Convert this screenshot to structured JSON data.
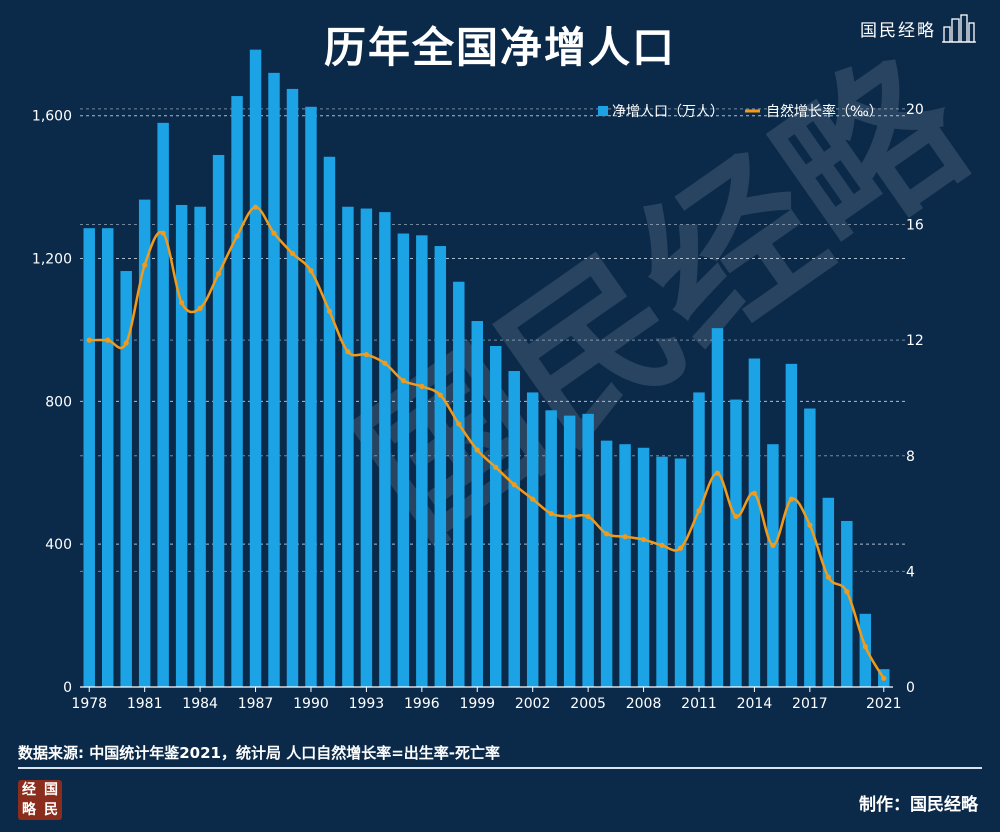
{
  "page": {
    "title": "历年全国净增人口",
    "brand": "国民经略",
    "source": "数据来源: 中国统计年鉴2021，统计局 人口自然增长率=出生率-死亡率",
    "credit": "制作：国民经略",
    "logo_chars": [
      "经",
      "国",
      "略",
      "民"
    ]
  },
  "colors": {
    "background": "#0b2a4a",
    "bar": "#1ba3e6",
    "line": "#f29a1a",
    "grid": "#c8d6e5"
  },
  "chart_data": {
    "type": "bar",
    "title": "历年全国净增人口",
    "categories": [
      "1978",
      "1979",
      "1980",
      "1981",
      "1982",
      "1983",
      "1984",
      "1985",
      "1986",
      "1987",
      "1988",
      "1989",
      "1990",
      "1991",
      "1992",
      "1993",
      "1994",
      "1995",
      "1996",
      "1997",
      "1998",
      "1999",
      "2000",
      "2001",
      "2002",
      "2003",
      "2004",
      "2005",
      "2006",
      "2007",
      "2008",
      "2009",
      "2010",
      "2011",
      "2012",
      "2013",
      "2014",
      "2015",
      "2016",
      "2017",
      "2018",
      "2019",
      "2020",
      "2021"
    ],
    "x_tick_labels": [
      "1978",
      "1981",
      "1984",
      "1987",
      "1990",
      "1993",
      "1996",
      "1999",
      "2002",
      "2005",
      "2008",
      "2011",
      "2014",
      "2017",
      "2021"
    ],
    "series": [
      {
        "name": "净增人口（万人）",
        "type": "bar",
        "axis": "left",
        "values": [
          1285,
          1285,
          1165,
          1365,
          1580,
          1350,
          1345,
          1490,
          1655,
          1785,
          1720,
          1675,
          1625,
          1485,
          1345,
          1340,
          1330,
          1270,
          1265,
          1235,
          1135,
          1025,
          955,
          885,
          825,
          775,
          760,
          765,
          690,
          680,
          670,
          645,
          640,
          825,
          1005,
          805,
          920,
          680,
          905,
          780,
          530,
          465,
          205,
          50
        ]
      },
      {
        "name": "自然增长率（‰）",
        "type": "line",
        "axis": "right",
        "values": [
          12.0,
          12.0,
          11.9,
          14.6,
          15.7,
          13.3,
          13.1,
          14.3,
          15.6,
          16.6,
          15.7,
          15.0,
          14.4,
          13.0,
          11.6,
          11.5,
          11.2,
          10.6,
          10.4,
          10.1,
          9.1,
          8.2,
          7.6,
          7.0,
          6.5,
          6.0,
          5.9,
          5.9,
          5.3,
          5.2,
          5.1,
          4.9,
          4.8,
          6.1,
          7.4,
          5.9,
          6.7,
          4.9,
          6.5,
          5.6,
          3.8,
          3.3,
          1.4,
          0.3
        ]
      }
    ],
    "y_left": {
      "min": 0,
      "max": 1700,
      "ticks": [
        0,
        400,
        800,
        1200,
        1600
      ],
      "tick_labels": [
        "0",
        "400",
        "800",
        "1,200",
        "1,600"
      ]
    },
    "y_right": {
      "min": 0,
      "max": 21,
      "ticks": [
        0,
        4,
        8,
        12,
        16,
        20
      ],
      "tick_labels": [
        "0",
        "4",
        "8",
        "12",
        "16",
        "20"
      ]
    },
    "legend_position": "top-right",
    "grid": "dashed-horizontal"
  }
}
